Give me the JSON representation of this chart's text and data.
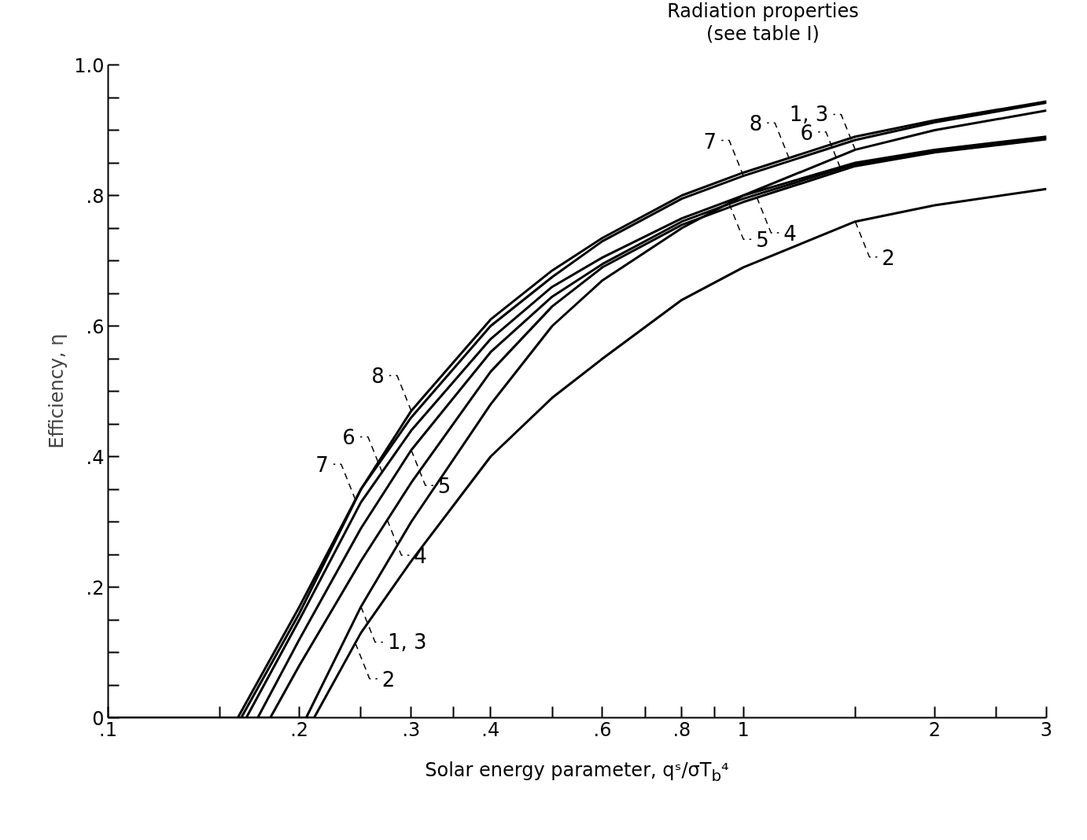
{
  "chart_data": {
    "type": "line",
    "xlabel": "Solar energy parameter, qˢ/σT$_{b}$⁴",
    "ylabel": "Efficiency, η",
    "log": "x",
    "grid": false,
    "marker": "none",
    "line_style": "solid",
    "xlim": [
      0.1,
      3
    ],
    "ylim": [
      0,
      1.0
    ],
    "xticks": [
      {
        "value": 0.1,
        "label": ".1"
      },
      {
        "value": 0.15,
        "label": null
      },
      {
        "value": 0.2,
        "label": ".2"
      },
      {
        "value": 0.25,
        "label": null
      },
      {
        "value": 0.3,
        "label": ".3"
      },
      {
        "value": 0.35,
        "label": null
      },
      {
        "value": 0.4,
        "label": ".4"
      },
      {
        "value": 0.5,
        "label": null
      },
      {
        "value": 0.6,
        "label": ".6"
      },
      {
        "value": 0.7,
        "label": null
      },
      {
        "value": 0.8,
        "label": ".8"
      },
      {
        "value": 0.9,
        "label": null
      },
      1,
      {
        "value": 1.5,
        "label": null
      },
      2,
      {
        "value": 2.5,
        "label": null
      },
      3
    ],
    "yticks": [
      0,
      {
        "value": 0.05,
        "label": null
      },
      {
        "value": 0.1,
        "label": null
      },
      {
        "value": 0.15,
        "label": null
      },
      {
        "value": 0.2,
        "label": ".2"
      },
      {
        "value": 0.25,
        "label": null
      },
      {
        "value": 0.3,
        "label": null
      },
      {
        "value": 0.35,
        "label": null
      },
      {
        "value": 0.4,
        "label": ".4"
      },
      {
        "value": 0.45,
        "label": null
      },
      {
        "value": 0.5,
        "label": null
      },
      {
        "value": 0.55,
        "label": null
      },
      {
        "value": 0.6,
        "label": ".6"
      },
      {
        "value": 0.65,
        "label": null
      },
      {
        "value": 0.7,
        "label": null
      },
      {
        "value": 0.75,
        "label": null
      },
      {
        "value": 0.8,
        "label": ".8"
      },
      {
        "value": 0.85,
        "label": null
      },
      {
        "value": 0.9,
        "label": null
      },
      {
        "value": 0.95,
        "label": null
      },
      {
        "value": 1.0,
        "label": "1.0"
      }
    ],
    "series": [
      {
        "color": "#000000",
        "x": [
          0.1,
          0.205,
          0.25,
          0.3,
          0.4,
          0.5,
          0.6,
          0.8,
          1,
          1.5,
          2,
          3
        ],
        "values": [
          0,
          0,
          0.17,
          0.3,
          0.48,
          0.6,
          0.67,
          0.75,
          0.8,
          0.87,
          0.9,
          0.93
        ]
      },
      {
        "color": "#000000",
        "x": [
          0.1,
          0.211,
          0.25,
          0.3,
          0.4,
          0.5,
          0.6,
          0.8,
          1,
          1.5,
          2,
          3
        ],
        "values": [
          0,
          0,
          0.13,
          0.24,
          0.4,
          0.49,
          0.55,
          0.64,
          0.69,
          0.76,
          0.785,
          0.81
        ]
      },
      {
        "color": "#000000",
        "x": [
          0.18,
          0.2,
          0.25,
          0.3,
          0.4,
          0.5,
          0.6,
          0.8,
          1,
          1.5,
          2,
          3
        ],
        "values": [
          0,
          0.08,
          0.24,
          0.36,
          0.53,
          0.63,
          0.69,
          0.755,
          0.79,
          0.845,
          0.866,
          0.886
        ]
      },
      {
        "color": "#000000",
        "x": [
          0.172,
          0.2,
          0.25,
          0.3,
          0.4,
          0.5,
          0.6,
          0.8,
          1,
          1.5,
          2,
          3
        ],
        "values": [
          0,
          0.12,
          0.29,
          0.41,
          0.56,
          0.645,
          0.695,
          0.76,
          0.795,
          0.848,
          0.868,
          0.888
        ]
      },
      {
        "color": "#000000",
        "x": [
          0.165,
          0.2,
          0.25,
          0.3,
          0.4,
          0.5,
          0.6,
          0.8,
          1,
          1.5,
          2,
          3
        ],
        "values": [
          0,
          0.15,
          0.33,
          0.44,
          0.58,
          0.66,
          0.705,
          0.765,
          0.8,
          0.85,
          0.87,
          0.89
        ]
      },
      {
        "color": "#000000",
        "x": [
          0.16,
          0.2,
          0.25,
          0.3,
          0.4,
          0.5,
          0.6,
          0.8,
          1,
          1.5,
          2,
          3
        ],
        "values": [
          0,
          0.17,
          0.35,
          0.46,
          0.6,
          0.675,
          0.73,
          0.795,
          0.83,
          0.885,
          0.912,
          0.942
        ]
      },
      {
        "color": "#000000",
        "x": [
          0.162,
          0.2,
          0.25,
          0.3,
          0.4,
          0.5,
          0.6,
          0.8,
          1,
          1.5,
          2,
          3
        ],
        "values": [
          0,
          0.16,
          0.35,
          0.47,
          0.61,
          0.685,
          0.735,
          0.8,
          0.835,
          0.89,
          0.915,
          0.944
        ]
      }
    ],
    "annotations": [
      "Radiation properties\n(see table I)",
      {
        "text": "8",
        "x": 0.3,
        "y": 0.47
      },
      {
        "text": "6",
        "x": 0.27,
        "y": 0.376
      },
      {
        "text": "7",
        "x": 0.245,
        "y": 0.334
      },
      {
        "text": "5",
        "x": 0.3,
        "y": 0.41
      },
      {
        "text": "4",
        "x": 0.275,
        "y": 0.303
      },
      {
        "text": "1, 3",
        "x": 0.25,
        "y": 0.17
      },
      {
        "text": "2",
        "x": 0.245,
        "y": 0.114
      },
      {
        "text": "1, 3",
        "x": 1.5,
        "y": 0.87
      },
      {
        "text": "7",
        "x": 1,
        "y": 0.83
      },
      {
        "text": "8",
        "x": 1.18,
        "y": 0.857
      },
      {
        "text": "6",
        "x": 1.42,
        "y": 0.843
      },
      {
        "text": "5",
        "x": 0.95,
        "y": 0.787
      },
      {
        "text": "4",
        "x": 1.05,
        "y": 0.797
      },
      {
        "text": "2",
        "x": 1.5,
        "y": 0.76
      }
    ]
  }
}
